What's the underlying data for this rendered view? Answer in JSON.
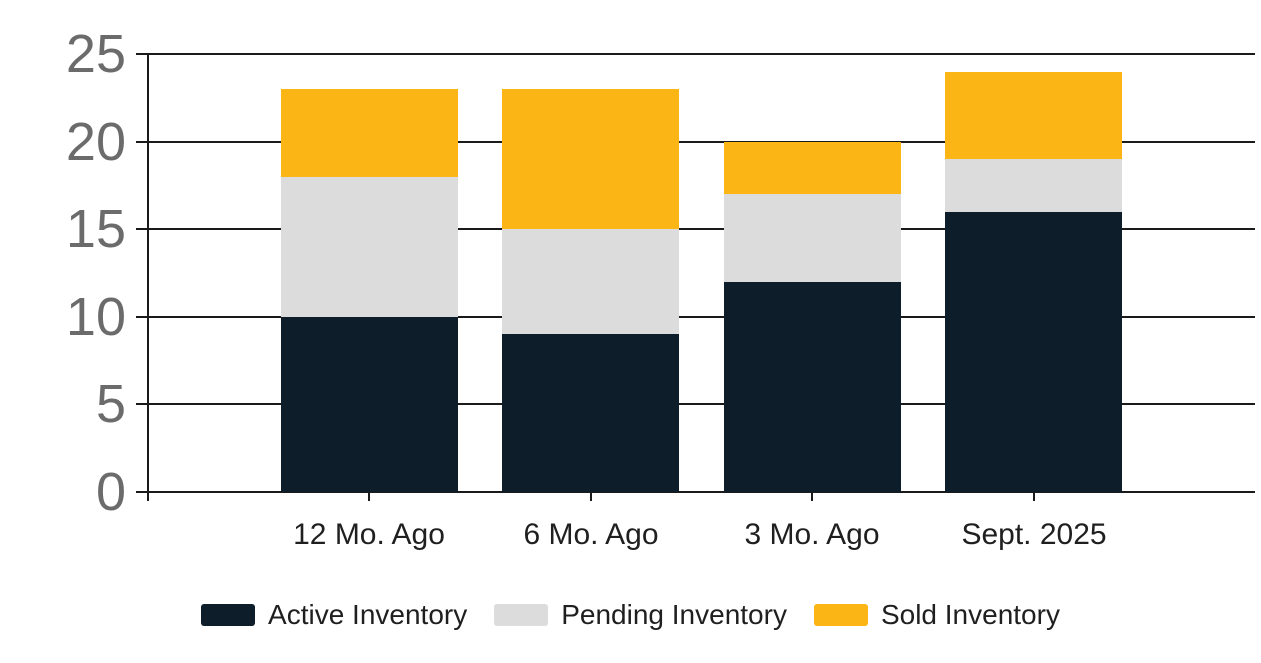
{
  "chart_data": {
    "type": "bar",
    "stacked": true,
    "title": "",
    "xlabel": "",
    "ylabel": "",
    "categories": [
      "12 Mo. Ago",
      "6 Mo. Ago",
      "3 Mo. Ago",
      "Sept. 2025"
    ],
    "series": [
      {
        "name": "Active Inventory",
        "color": "#0D1E2A",
        "values": [
          10,
          9,
          12,
          16
        ]
      },
      {
        "name": "Pending Inventory",
        "color": "#DCDCDC",
        "values": [
          8,
          6,
          5,
          3
        ]
      },
      {
        "name": "Sold Inventory",
        "color": "#FBB616",
        "values": [
          5,
          8,
          3,
          5
        ]
      }
    ],
    "stack_totals": [
      23,
      23,
      20,
      24
    ],
    "ylim": [
      0,
      25
    ],
    "yticks": [
      0,
      5,
      10,
      15,
      20,
      25
    ],
    "grid": true,
    "gridlines_behind_bars": true,
    "legend_position": "bottom"
  },
  "colors": {
    "axis_and_grid": "#1a1a1a",
    "y_tick_label": "#6b6b6b",
    "category_label": "#1f1f1f",
    "background": "#ffffff"
  }
}
